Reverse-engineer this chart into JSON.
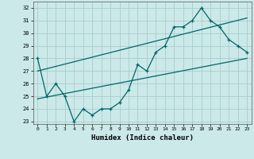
{
  "title": "",
  "xlabel": "Humidex (Indice chaleur)",
  "ylabel": "",
  "bg_color": "#cbe9e9",
  "grid_color": "#aacccc",
  "line_color": "#006666",
  "xlim": [
    -0.5,
    23.5
  ],
  "ylim": [
    22.8,
    32.5
  ],
  "xticks": [
    0,
    1,
    2,
    3,
    4,
    5,
    6,
    7,
    8,
    9,
    10,
    11,
    12,
    13,
    14,
    15,
    16,
    17,
    18,
    19,
    20,
    21,
    22,
    23
  ],
  "yticks": [
    23,
    24,
    25,
    26,
    27,
    28,
    29,
    30,
    31,
    32
  ],
  "main_x": [
    0,
    1,
    2,
    3,
    4,
    5,
    6,
    7,
    8,
    9,
    10,
    11,
    12,
    13,
    14,
    15,
    16,
    17,
    18,
    19,
    20,
    21,
    22,
    23
  ],
  "main_y": [
    28,
    25,
    26,
    25,
    23,
    24,
    23.5,
    24,
    24,
    24.5,
    25.5,
    27.5,
    27,
    28.5,
    29,
    30.5,
    30.5,
    31,
    32,
    31,
    30.5,
    29.5,
    29,
    28.5
  ],
  "trend1_x": [
    0,
    23
  ],
  "trend1_y": [
    24.8,
    28.0
  ],
  "trend2_x": [
    0,
    23
  ],
  "trend2_y": [
    27.0,
    31.2
  ],
  "marker": "+"
}
